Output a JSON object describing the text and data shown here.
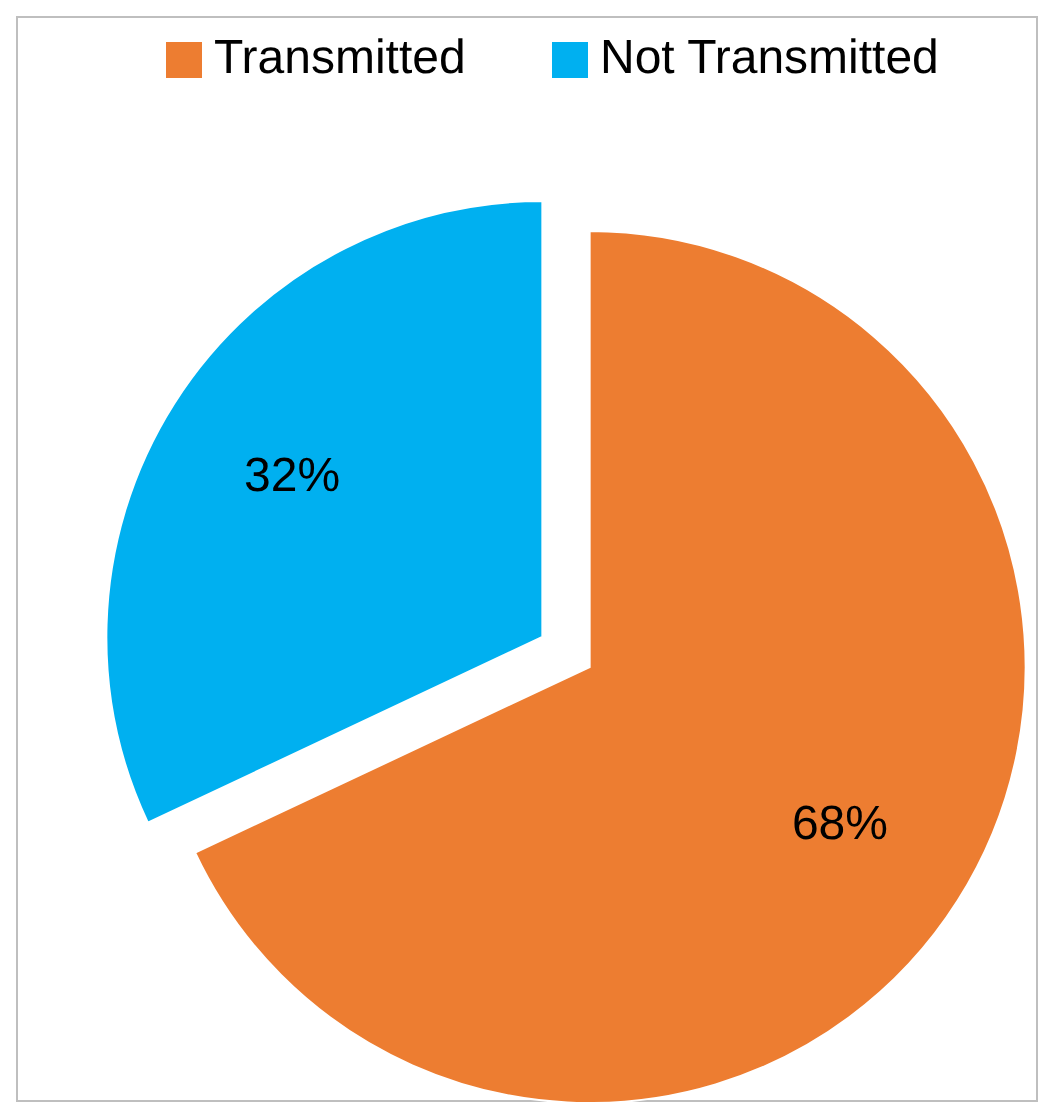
{
  "chart_data": {
    "type": "pie",
    "categories": [
      "Transmitted",
      "Not Transmitted"
    ],
    "values": [
      68,
      32
    ],
    "colors": [
      "#ed7d31",
      "#00b0f0"
    ],
    "value_labels": [
      "68%",
      "32%"
    ],
    "legend": "top"
  }
}
